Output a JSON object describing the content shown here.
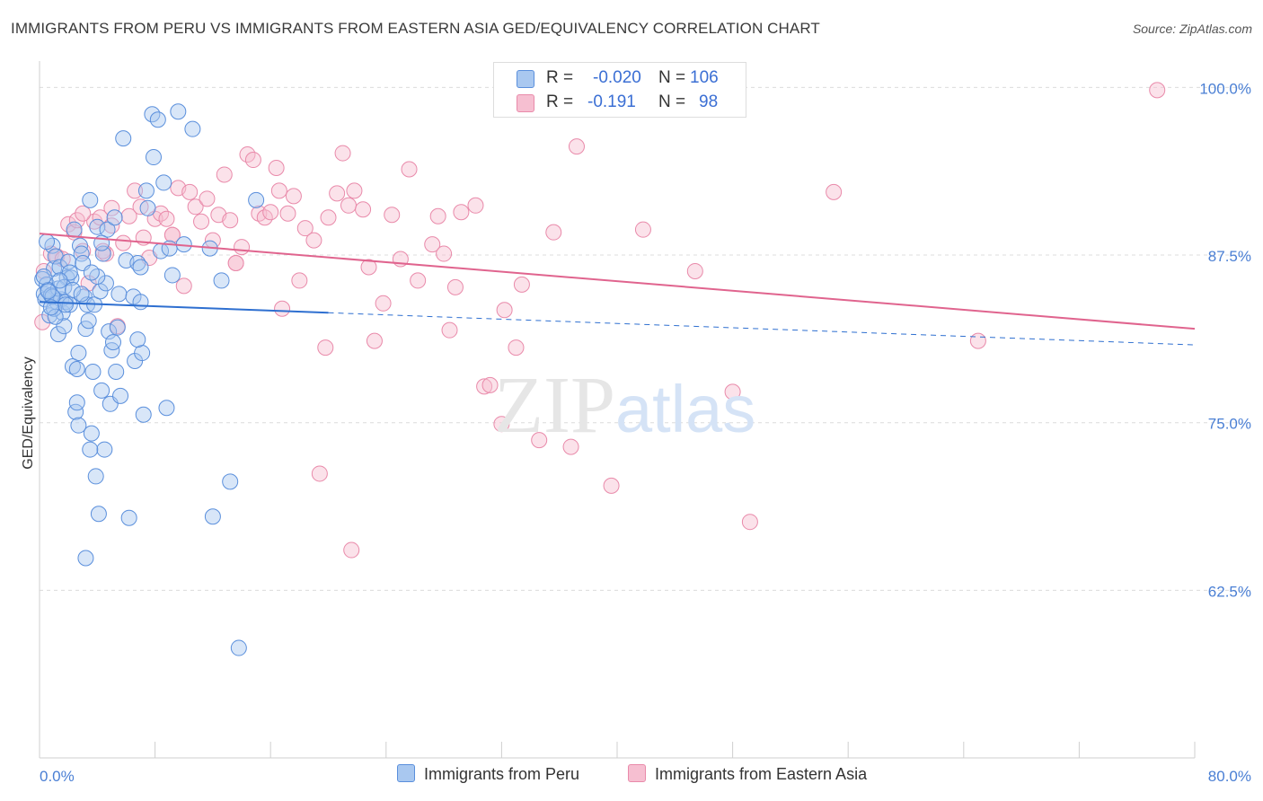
{
  "title": "IMMIGRANTS FROM PERU VS IMMIGRANTS FROM EASTERN ASIA GED/EQUIVALENCY CORRELATION CHART",
  "source": "Source: ZipAtlas.com",
  "watermark": {
    "zip": "ZIP",
    "atlas": "atlas"
  },
  "legend": {
    "r_label": "R =",
    "n_label": "N =",
    "peru": {
      "r": "-0.020",
      "n": "106"
    },
    "asia": {
      "r": "-0.191",
      "n": "98"
    }
  },
  "colors": {
    "peru_fill": "#a9c8f0",
    "peru_stroke": "#5a8fdc",
    "peru_line": "#2e6fd0",
    "asia_fill": "#f6bfd1",
    "asia_stroke": "#e98aaa",
    "asia_line": "#e0648e",
    "tick_text": "#4a7fd4",
    "grid": "#dcdcdc"
  },
  "chart_data": {
    "type": "scatter",
    "title": "IMMIGRANTS FROM PERU VS IMMIGRANTS FROM EASTERN ASIA GED/EQUIVALENCY CORRELATION CHART",
    "xlabel": "",
    "ylabel": "GED/Equivalency",
    "xlim": [
      0,
      80
    ],
    "ylim": [
      50,
      101.5
    ],
    "x_tick_labels": [
      "0.0%",
      "80.0%"
    ],
    "y_ticks": [
      62.5,
      75.0,
      87.5,
      100.0
    ],
    "y_tick_labels": [
      "62.5%",
      "75.0%",
      "87.5%",
      "100.0%"
    ],
    "grid": true,
    "legend_position": "bottom",
    "series": [
      {
        "name": "Immigrants from Peru",
        "trend": {
          "x": [
            0,
            20
          ],
          "y": [
            84.0,
            83.2
          ],
          "dashed_to": [
            80,
            80.8
          ]
        },
        "points": [
          [
            0.2,
            85.7
          ],
          [
            0.3,
            84.6
          ],
          [
            0.4,
            84.2
          ],
          [
            0.5,
            85.3
          ],
          [
            0.6,
            84.9
          ],
          [
            0.7,
            83.0
          ],
          [
            0.8,
            84.5
          ],
          [
            0.9,
            88.2
          ],
          [
            1.0,
            86.5
          ],
          [
            1.1,
            87.4
          ],
          [
            1.2,
            84.0
          ],
          [
            1.3,
            81.6
          ],
          [
            1.4,
            86.6
          ],
          [
            1.5,
            84.2
          ],
          [
            1.6,
            83.2
          ],
          [
            1.7,
            82.2
          ],
          [
            1.8,
            84.0
          ],
          [
            1.9,
            85.8
          ],
          [
            2.0,
            87.0
          ],
          [
            2.1,
            83.8
          ],
          [
            2.2,
            85.8
          ],
          [
            2.3,
            79.2
          ],
          [
            2.4,
            89.4
          ],
          [
            2.5,
            75.8
          ],
          [
            2.6,
            76.5
          ],
          [
            2.7,
            74.8
          ],
          [
            2.8,
            88.2
          ],
          [
            2.9,
            87.6
          ],
          [
            3.0,
            86.9
          ],
          [
            3.1,
            84.4
          ],
          [
            3.2,
            82.0
          ],
          [
            3.3,
            83.8
          ],
          [
            3.4,
            82.6
          ],
          [
            3.5,
            91.6
          ],
          [
            3.6,
            74.2
          ],
          [
            3.7,
            78.8
          ],
          [
            3.8,
            83.8
          ],
          [
            4.0,
            89.6
          ],
          [
            4.1,
            68.2
          ],
          [
            4.2,
            84.8
          ],
          [
            4.3,
            77.4
          ],
          [
            4.4,
            87.6
          ],
          [
            4.5,
            73.0
          ],
          [
            4.6,
            85.4
          ],
          [
            4.8,
            81.8
          ],
          [
            4.9,
            76.4
          ],
          [
            5.0,
            80.4
          ],
          [
            5.1,
            81.0
          ],
          [
            5.3,
            78.8
          ],
          [
            5.5,
            84.6
          ],
          [
            5.6,
            77.0
          ],
          [
            5.8,
            96.2
          ],
          [
            6.0,
            87.1
          ],
          [
            6.2,
            67.9
          ],
          [
            6.5,
            84.4
          ],
          [
            6.6,
            79.6
          ],
          [
            6.8,
            86.9
          ],
          [
            7.0,
            84.0
          ],
          [
            7.1,
            80.2
          ],
          [
            7.2,
            75.6
          ],
          [
            7.4,
            92.3
          ],
          [
            7.5,
            91.0
          ],
          [
            7.8,
            98.0
          ],
          [
            7.9,
            94.8
          ],
          [
            8.2,
            97.6
          ],
          [
            8.4,
            87.8
          ],
          [
            8.6,
            92.9
          ],
          [
            8.8,
            76.1
          ],
          [
            9.0,
            88.0
          ],
          [
            9.2,
            86.0
          ],
          [
            9.6,
            98.2
          ],
          [
            10.0,
            88.3
          ],
          [
            10.6,
            96.9
          ],
          [
            11.8,
            88.0
          ],
          [
            12.0,
            68.0
          ],
          [
            12.6,
            85.6
          ],
          [
            13.2,
            70.6
          ],
          [
            13.8,
            58.2
          ],
          [
            15.0,
            91.6
          ],
          [
            1.3,
            85.0
          ],
          [
            2.1,
            86.2
          ],
          [
            0.5,
            88.5
          ],
          [
            1.0,
            83.5
          ],
          [
            0.3,
            85.9
          ],
          [
            1.7,
            85.1
          ],
          [
            2.7,
            80.2
          ],
          [
            3.5,
            73.0
          ],
          [
            4.0,
            85.9
          ],
          [
            0.9,
            84.4
          ],
          [
            1.8,
            83.8
          ],
          [
            3.9,
            71.0
          ],
          [
            2.6,
            79.0
          ],
          [
            3.6,
            86.2
          ],
          [
            4.7,
            89.4
          ],
          [
            5.4,
            82.1
          ],
          [
            0.6,
            84.8
          ],
          [
            1.4,
            85.6
          ],
          [
            2.3,
            84.9
          ],
          [
            1.1,
            82.9
          ],
          [
            0.8,
            83.6
          ],
          [
            2.9,
            84.6
          ],
          [
            4.3,
            88.4
          ],
          [
            6.8,
            81.2
          ],
          [
            5.2,
            90.3
          ],
          [
            7.0,
            86.6
          ],
          [
            3.2,
            64.9
          ]
        ]
      },
      {
        "name": "Immigrants from Eastern Asia",
        "trend": {
          "x": [
            0,
            80
          ],
          "y": [
            89.1,
            82.0
          ]
        },
        "points": [
          [
            0.2,
            82.5
          ],
          [
            0.3,
            86.3
          ],
          [
            0.8,
            87.6
          ],
          [
            1.2,
            87.4
          ],
          [
            1.6,
            87.2
          ],
          [
            2.0,
            89.8
          ],
          [
            2.4,
            89.2
          ],
          [
            2.6,
            90.1
          ],
          [
            3.0,
            87.8
          ],
          [
            3.4,
            85.4
          ],
          [
            3.8,
            90.0
          ],
          [
            4.2,
            90.3
          ],
          [
            4.6,
            87.6
          ],
          [
            5.0,
            89.7
          ],
          [
            5.4,
            82.2
          ],
          [
            5.8,
            88.4
          ],
          [
            6.2,
            90.4
          ],
          [
            6.6,
            92.3
          ],
          [
            7.0,
            91.1
          ],
          [
            7.2,
            88.8
          ],
          [
            7.6,
            87.3
          ],
          [
            8.0,
            90.2
          ],
          [
            8.4,
            90.6
          ],
          [
            8.8,
            90.2
          ],
          [
            9.2,
            89.0
          ],
          [
            9.6,
            92.5
          ],
          [
            10.0,
            85.2
          ],
          [
            10.4,
            92.2
          ],
          [
            10.8,
            91.1
          ],
          [
            11.2,
            90.0
          ],
          [
            11.6,
            91.7
          ],
          [
            12.0,
            88.6
          ],
          [
            12.4,
            90.5
          ],
          [
            12.8,
            93.5
          ],
          [
            13.2,
            90.1
          ],
          [
            13.6,
            86.9
          ],
          [
            14.0,
            88.1
          ],
          [
            14.4,
            95.0
          ],
          [
            14.8,
            94.6
          ],
          [
            15.2,
            90.6
          ],
          [
            15.6,
            90.3
          ],
          [
            16.0,
            90.7
          ],
          [
            16.4,
            94.0
          ],
          [
            16.8,
            83.5
          ],
          [
            17.2,
            90.6
          ],
          [
            17.6,
            91.9
          ],
          [
            18.0,
            85.6
          ],
          [
            18.4,
            89.5
          ],
          [
            19.0,
            88.6
          ],
          [
            19.8,
            80.6
          ],
          [
            20.0,
            90.3
          ],
          [
            20.6,
            92.1
          ],
          [
            21.0,
            95.1
          ],
          [
            21.4,
            91.2
          ],
          [
            21.8,
            92.3
          ],
          [
            22.4,
            90.9
          ],
          [
            22.8,
            86.6
          ],
          [
            23.2,
            81.1
          ],
          [
            23.8,
            83.9
          ],
          [
            24.4,
            90.5
          ],
          [
            25.0,
            87.2
          ],
          [
            25.6,
            93.9
          ],
          [
            26.2,
            85.6
          ],
          [
            27.2,
            88.3
          ],
          [
            27.6,
            90.4
          ],
          [
            28.0,
            87.6
          ],
          [
            28.4,
            81.9
          ],
          [
            28.8,
            85.1
          ],
          [
            29.2,
            90.7
          ],
          [
            30.2,
            91.2
          ],
          [
            30.8,
            77.7
          ],
          [
            31.2,
            77.8
          ],
          [
            32.2,
            83.4
          ],
          [
            33.0,
            80.6
          ],
          [
            33.4,
            85.3
          ],
          [
            34.6,
            73.7
          ],
          [
            35.6,
            89.2
          ],
          [
            36.0,
            100.0
          ],
          [
            36.8,
            73.2
          ],
          [
            37.2,
            95.6
          ],
          [
            39.6,
            70.3
          ],
          [
            41.8,
            89.4
          ],
          [
            43.0,
            100.0
          ],
          [
            45.4,
            86.3
          ],
          [
            48.0,
            77.3
          ],
          [
            49.2,
            67.6
          ],
          [
            55.0,
            92.2
          ],
          [
            65.0,
            81.1
          ],
          [
            77.4,
            99.8
          ],
          [
            21.6,
            65.5
          ],
          [
            19.4,
            71.2
          ],
          [
            32.0,
            74.9
          ],
          [
            16.6,
            92.3
          ],
          [
            13.6,
            86.9
          ],
          [
            9.2,
            89.0
          ],
          [
            5.0,
            91.0
          ],
          [
            3.0,
            90.6
          ],
          [
            4.4,
            87.8
          ]
        ]
      }
    ]
  },
  "bottom_legend": {
    "peru": "Immigrants from Peru",
    "asia": "Immigrants from Eastern Asia"
  }
}
